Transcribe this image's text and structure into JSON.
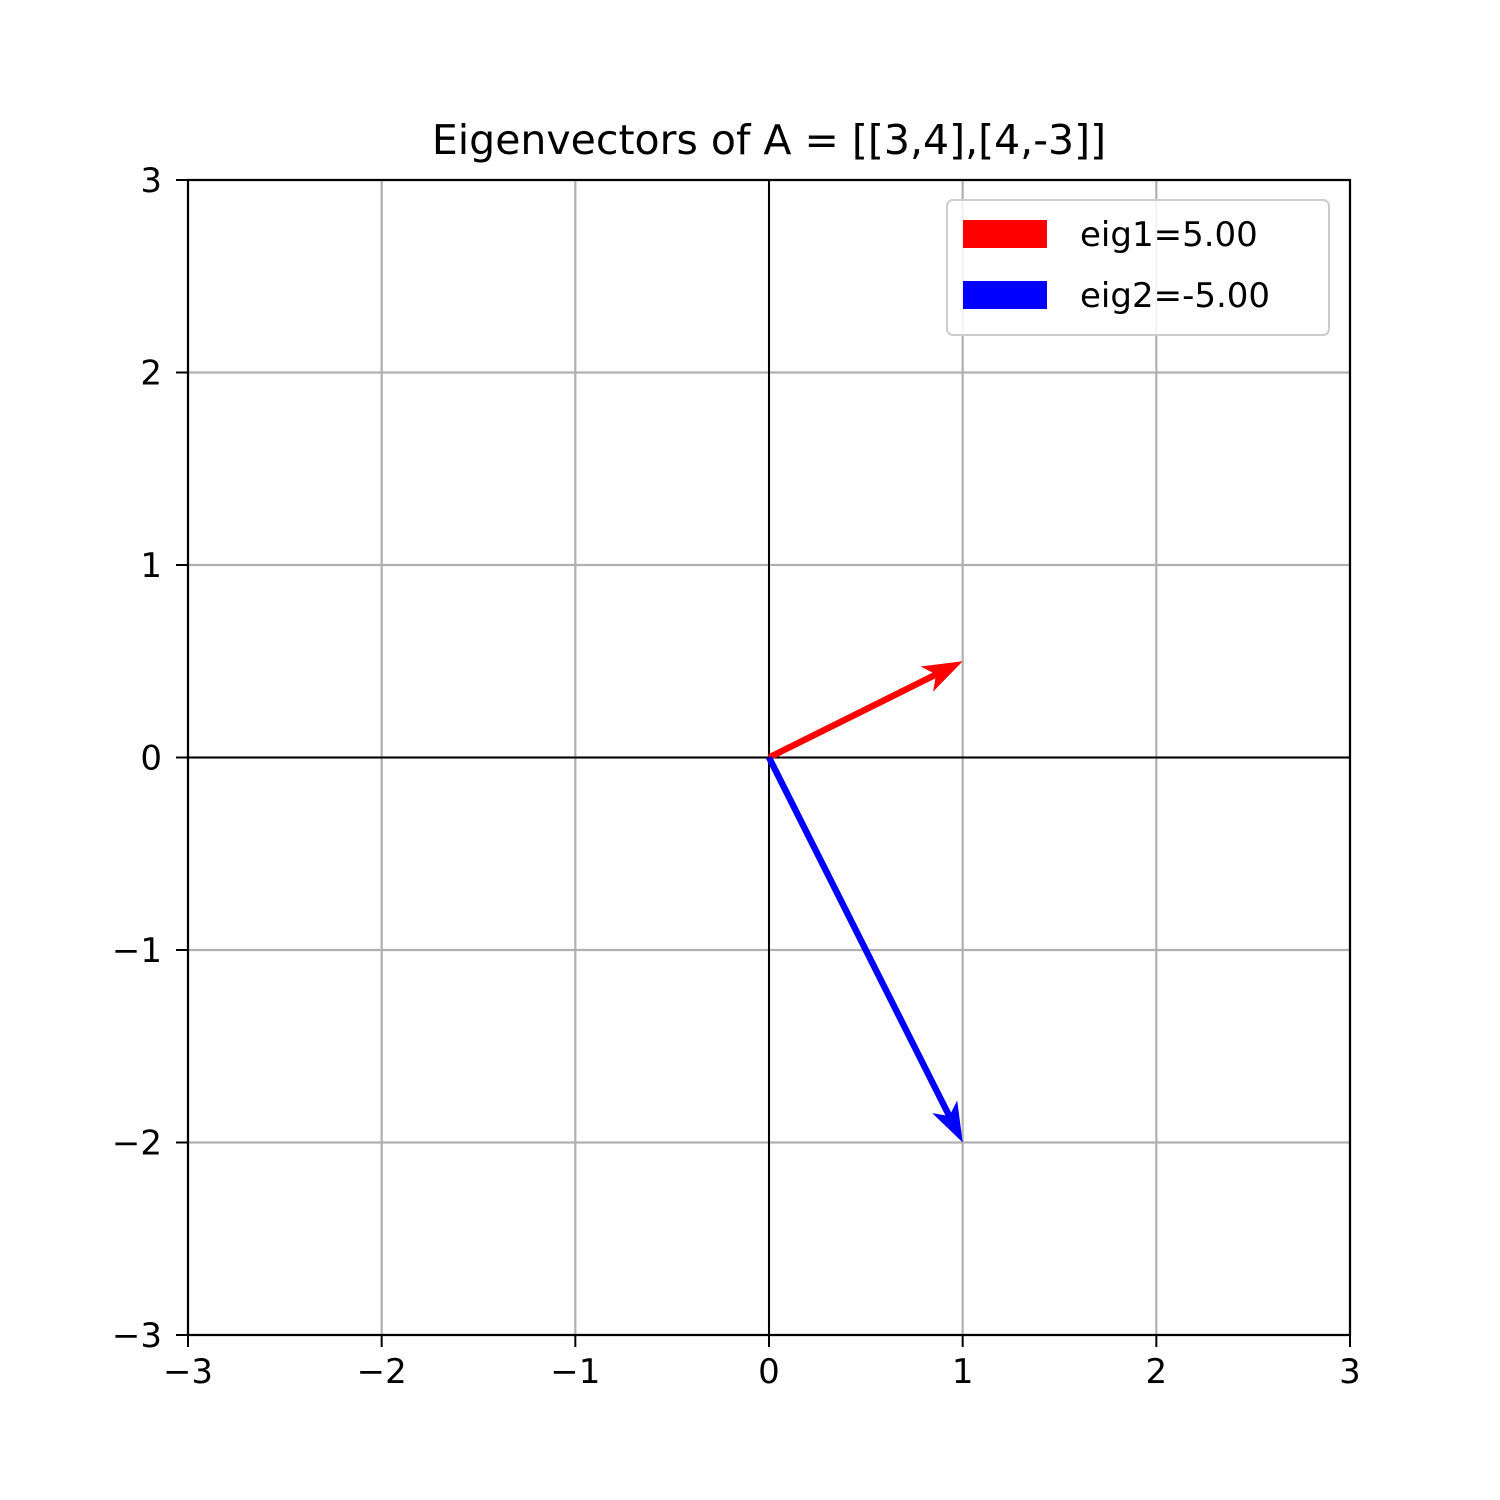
{
  "chart_data": {
    "type": "quiver",
    "title": "Eigenvectors of A = [[3,4],[4,-3]]",
    "xlabel": "",
    "ylabel": "",
    "xlim": [
      -3,
      3
    ],
    "ylim": [
      -3,
      3
    ],
    "xticks": [
      -3,
      -2,
      -1,
      0,
      1,
      2,
      3
    ],
    "yticks": [
      -3,
      -2,
      -1,
      0,
      1,
      2,
      3
    ],
    "xtick_labels": [
      "−3",
      "−2",
      "−1",
      "0",
      "1",
      "2",
      "3"
    ],
    "ytick_labels": [
      "−3",
      "−2",
      "−1",
      "0",
      "1",
      "2",
      "3"
    ],
    "grid": true,
    "axis_lines_at_zero": true,
    "legend_position": "top-right",
    "series": [
      {
        "name": "eig1=5.00",
        "color": "#ff0000",
        "origin": [
          0,
          0
        ],
        "vector": [
          1,
          0.5
        ]
      },
      {
        "name": "eig2=-5.00",
        "color": "#0000ff",
        "origin": [
          0,
          0
        ],
        "vector": [
          1,
          -2
        ]
      }
    ]
  }
}
